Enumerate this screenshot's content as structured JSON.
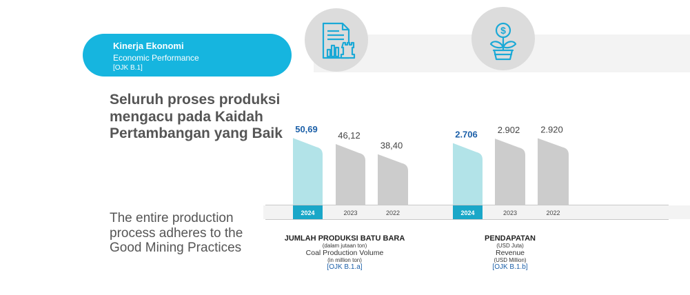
{
  "header": {
    "title_id": "Kinerja Ekonomi",
    "title_en": "Economic Performance",
    "ref": "[OJK B.1]"
  },
  "headline_id": "Seluruh proses produksi mengacu pada Kaidah Pertambangan yang Baik",
  "headline_en": "The entire production process adheres to the Good Mining Practices",
  "icons": [
    "report-chart-icon",
    "money-plant-icon"
  ],
  "colors": {
    "accent": "#16b5df",
    "highlight_bar": "#b2e3e8",
    "bar": "#cccccc",
    "year_tab": "#1aa7c8",
    "value_highlight": "#1b5fa8"
  },
  "chart_data": [
    {
      "type": "bar",
      "categories": [
        "2024",
        "2023",
        "2022"
      ],
      "values": [
        50.69,
        46.12,
        38.4
      ],
      "labels": [
        "50,69",
        "46,12",
        "38,40"
      ],
      "highlight": "2024",
      "ylim": [
        0,
        55
      ],
      "caption": {
        "title": "JUMLAH PRODUKSI BATU BARA",
        "unit_id": "(dalam jutaan ton)",
        "title_en": "Coal Production Volume",
        "unit_en": "(in million ton)",
        "ref": "[OJK B.1.a]"
      }
    },
    {
      "type": "bar",
      "categories": [
        "2024",
        "2023",
        "2022"
      ],
      "values": [
        2706,
        2902,
        2920
      ],
      "labels": [
        "2.706",
        "2.902",
        "2.920"
      ],
      "highlight": "2024",
      "ylim": [
        0,
        3050
      ],
      "caption": {
        "title": "PENDAPATAN",
        "unit_id": "(USD Juta)",
        "title_en": "Revenue",
        "unit_en": "(USD Million)",
        "ref": "[OJK B.1.b]"
      }
    }
  ]
}
